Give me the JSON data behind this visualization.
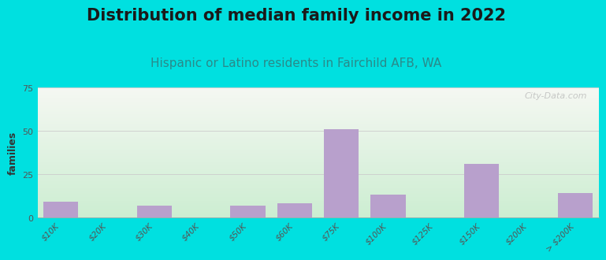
{
  "title": "Distribution of median family income in 2022",
  "subtitle": "Hispanic or Latino residents in Fairchild AFB, WA",
  "ylabel": "families",
  "categories": [
    "$10K",
    "$20K",
    "$30K",
    "$40K",
    "$50K",
    "$60K",
    "$75K",
    "$100K",
    "$125K",
    "$150K",
    "$200K",
    "> $200K"
  ],
  "values": [
    9,
    0,
    7,
    0,
    7,
    8,
    51,
    13,
    0,
    31,
    0,
    14
  ],
  "bar_color": "#b8a0cc",
  "background_outer": "#00e0e0",
  "grad_top_left": "#c8edd8",
  "grad_top_right": "#f0f0ee",
  "grad_bottom": "#c8edd8",
  "ylim": [
    0,
    75
  ],
  "yticks": [
    0,
    25,
    50,
    75
  ],
  "title_fontsize": 15,
  "subtitle_fontsize": 11,
  "title_color": "#1a1a1a",
  "subtitle_color": "#2a8a8a",
  "ylabel_fontsize": 9,
  "watermark": "City-Data.com",
  "grid_color": "#cccccc"
}
